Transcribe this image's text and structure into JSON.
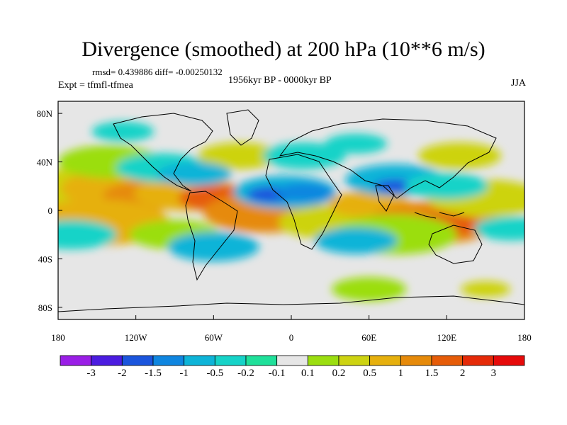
{
  "title": "Divergence (smoothed) at 200 hPa (10**6 m/s)",
  "stats": "rmsd= 0.439886 diff= -0.00250132",
  "experiment": "Expt = tfmfl-tfmea",
  "period": "1956kyr BP - 0000kyr BP",
  "season": "JJA",
  "axes": {
    "x_ticks": [
      "180",
      "120W",
      "60W",
      "0",
      "60E",
      "120E",
      "180"
    ],
    "y_ticks": [
      "80N",
      "40N",
      "0",
      "40S",
      "80S"
    ]
  },
  "colorbar": {
    "labels": [
      "-3",
      "-2",
      "-1.5",
      "-1",
      "-0.5",
      "-0.2",
      "-0.1",
      "0.1",
      "0.2",
      "0.5",
      "1",
      "1.5",
      "2",
      "3"
    ],
    "colors": [
      "#9a1ee6",
      "#4b1ce0",
      "#1b55dd",
      "#0f86e0",
      "#0eb4d8",
      "#16d3c8",
      "#1fe09a",
      "#e6e6e6",
      "#9bde10",
      "#cdd311",
      "#e6b00d",
      "#e68a0a",
      "#e65c08",
      "#e52a08",
      "#e60a0a"
    ]
  },
  "map": {
    "background_color": "#e6e6e6",
    "blobs": [
      {
        "lon": -160,
        "lat": 14,
        "r": 38,
        "c": "#cdd311"
      },
      {
        "lon": -130,
        "lat": 18,
        "r": 30,
        "c": "#e6b00d"
      },
      {
        "lon": -110,
        "lat": 12,
        "r": 22,
        "c": "#e68a0a"
      },
      {
        "lon": -80,
        "lat": 14,
        "r": 26,
        "c": "#e6b00d"
      },
      {
        "lon": -55,
        "lat": 10,
        "r": 20,
        "c": "#e65c08"
      },
      {
        "lon": -20,
        "lat": -2,
        "r": 30,
        "c": "#e68a0a"
      },
      {
        "lon": 30,
        "lat": -10,
        "r": 25,
        "c": "#cdd311"
      },
      {
        "lon": 60,
        "lat": 5,
        "r": 20,
        "c": "#e6b00d"
      },
      {
        "lon": 110,
        "lat": -10,
        "r": 32,
        "c": "#e68a0a"
      },
      {
        "lon": 115,
        "lat": -12,
        "r": 18,
        "c": "#e65c08"
      },
      {
        "lon": 150,
        "lat": 10,
        "r": 28,
        "c": "#cdd311"
      },
      {
        "lon": -150,
        "lat": -10,
        "r": 35,
        "c": "#e6b00d"
      },
      {
        "lon": -90,
        "lat": -20,
        "r": 22,
        "c": "#9bde10"
      },
      {
        "lon": 80,
        "lat": -20,
        "r": 30,
        "c": "#9bde10"
      },
      {
        "lon": -40,
        "lat": 45,
        "r": 20,
        "c": "#cdd311"
      },
      {
        "lon": 130,
        "lat": 45,
        "r": 20,
        "c": "#cdd311"
      },
      {
        "lon": -140,
        "lat": 40,
        "r": 25,
        "c": "#9bde10"
      },
      {
        "lon": 60,
        "lat": -65,
        "r": 18,
        "c": "#9bde10"
      },
      {
        "lon": 150,
        "lat": -65,
        "r": 12,
        "c": "#cdd311"
      },
      {
        "lon": -100,
        "lat": 35,
        "r": 22,
        "c": "#16d3c8"
      },
      {
        "lon": -75,
        "lat": 30,
        "r": 18,
        "c": "#0eb4d8"
      },
      {
        "lon": -5,
        "lat": 15,
        "r": 25,
        "c": "#0eb4d8"
      },
      {
        "lon": -15,
        "lat": 13,
        "r": 12,
        "c": "#1b55dd"
      },
      {
        "lon": 10,
        "lat": 15,
        "r": 14,
        "c": "#0f86e0"
      },
      {
        "lon": 80,
        "lat": 25,
        "r": 24,
        "c": "#0eb4d8"
      },
      {
        "lon": 80,
        "lat": 20,
        "r": 10,
        "c": "#1b55dd"
      },
      {
        "lon": 120,
        "lat": 20,
        "r": 20,
        "c": "#16d3c8"
      },
      {
        "lon": 10,
        "lat": 45,
        "r": 20,
        "c": "#16d3c8"
      },
      {
        "lon": 50,
        "lat": 55,
        "r": 15,
        "c": "#16d3c8"
      },
      {
        "lon": -170,
        "lat": -20,
        "r": 22,
        "c": "#16d3c8"
      },
      {
        "lon": -60,
        "lat": -30,
        "r": 22,
        "c": "#0eb4d8"
      },
      {
        "lon": 50,
        "lat": -25,
        "r": 20,
        "c": "#0eb4d8"
      },
      {
        "lon": 170,
        "lat": -15,
        "r": 18,
        "c": "#16d3c8"
      },
      {
        "lon": -130,
        "lat": 65,
        "r": 15,
        "c": "#16d3c8"
      }
    ]
  }
}
